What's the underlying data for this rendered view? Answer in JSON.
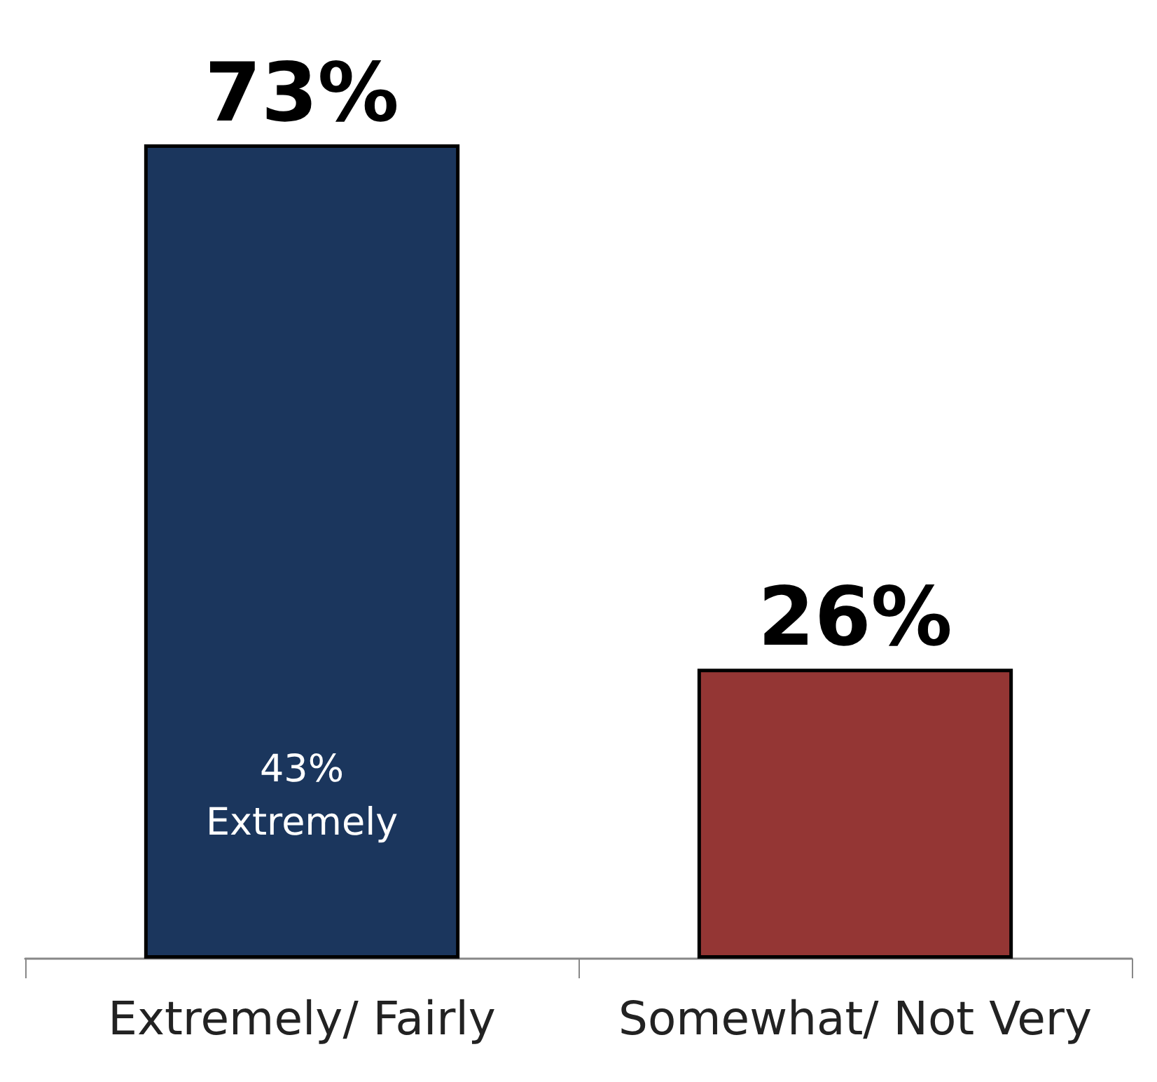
{
  "chart_data": {
    "type": "bar",
    "categories": [
      "Extremely/ Fairly",
      "Somewhat/ Not Very"
    ],
    "values": [
      73,
      26
    ],
    "colors": [
      "#1b365d",
      "#943634"
    ],
    "value_labels": [
      "73%",
      "26%"
    ],
    "annotations": [
      "43%\nExtremely"
    ]
  }
}
